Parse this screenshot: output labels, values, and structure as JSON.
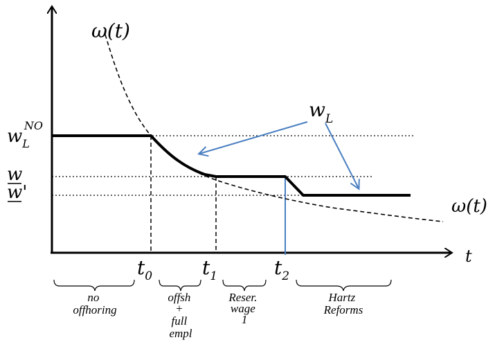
{
  "figure": {
    "axis_y_symbol": "",
    "axis_x_symbol": "t",
    "omega_top": "ω(t)",
    "omega_right": "ω(t)",
    "wl_label_main": "w",
    "wl_label_sub": "L",
    "y_labels": {
      "wno_main": "w",
      "wno_sub": "L",
      "wno_sup": "NO",
      "w_bar": "w",
      "w_prime": "w'"
    },
    "x_ticks": [
      {
        "main": "t",
        "sub": "0"
      },
      {
        "main": "t",
        "sub": "1"
      },
      {
        "main": "t",
        "sub": "2"
      }
    ],
    "phases": [
      {
        "lines": [
          "no",
          "offhoring"
        ]
      },
      {
        "lines": [
          "offsh",
          "+",
          "full",
          "empl"
        ]
      },
      {
        "lines": [
          "Reser.",
          "wage",
          "1"
        ]
      },
      {
        "lines": [
          "Hartz",
          "Reforms"
        ]
      }
    ],
    "colors": {
      "axis": "#000000",
      "wage_path": "#000000",
      "arrow": "#4a7fc1",
      "vertical_t2": "#4a7fc1"
    }
  }
}
